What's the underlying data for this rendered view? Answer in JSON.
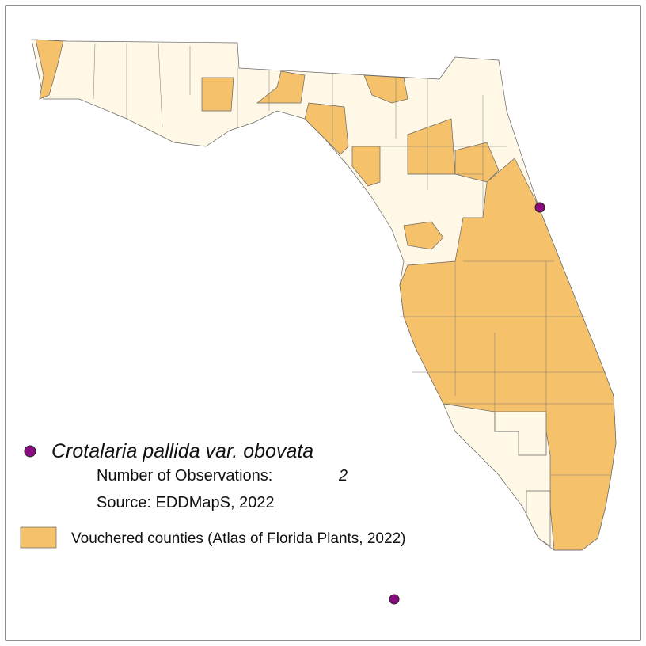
{
  "legend": {
    "species": "Crotalaria pallida var. obovata",
    "observations_label": "Number of Observations:",
    "observations_count": "2",
    "source": "Source: EDDMapS, 2022",
    "vouchered": "Vouchered counties (Atlas of Florida Plants, 2022)"
  }
}
